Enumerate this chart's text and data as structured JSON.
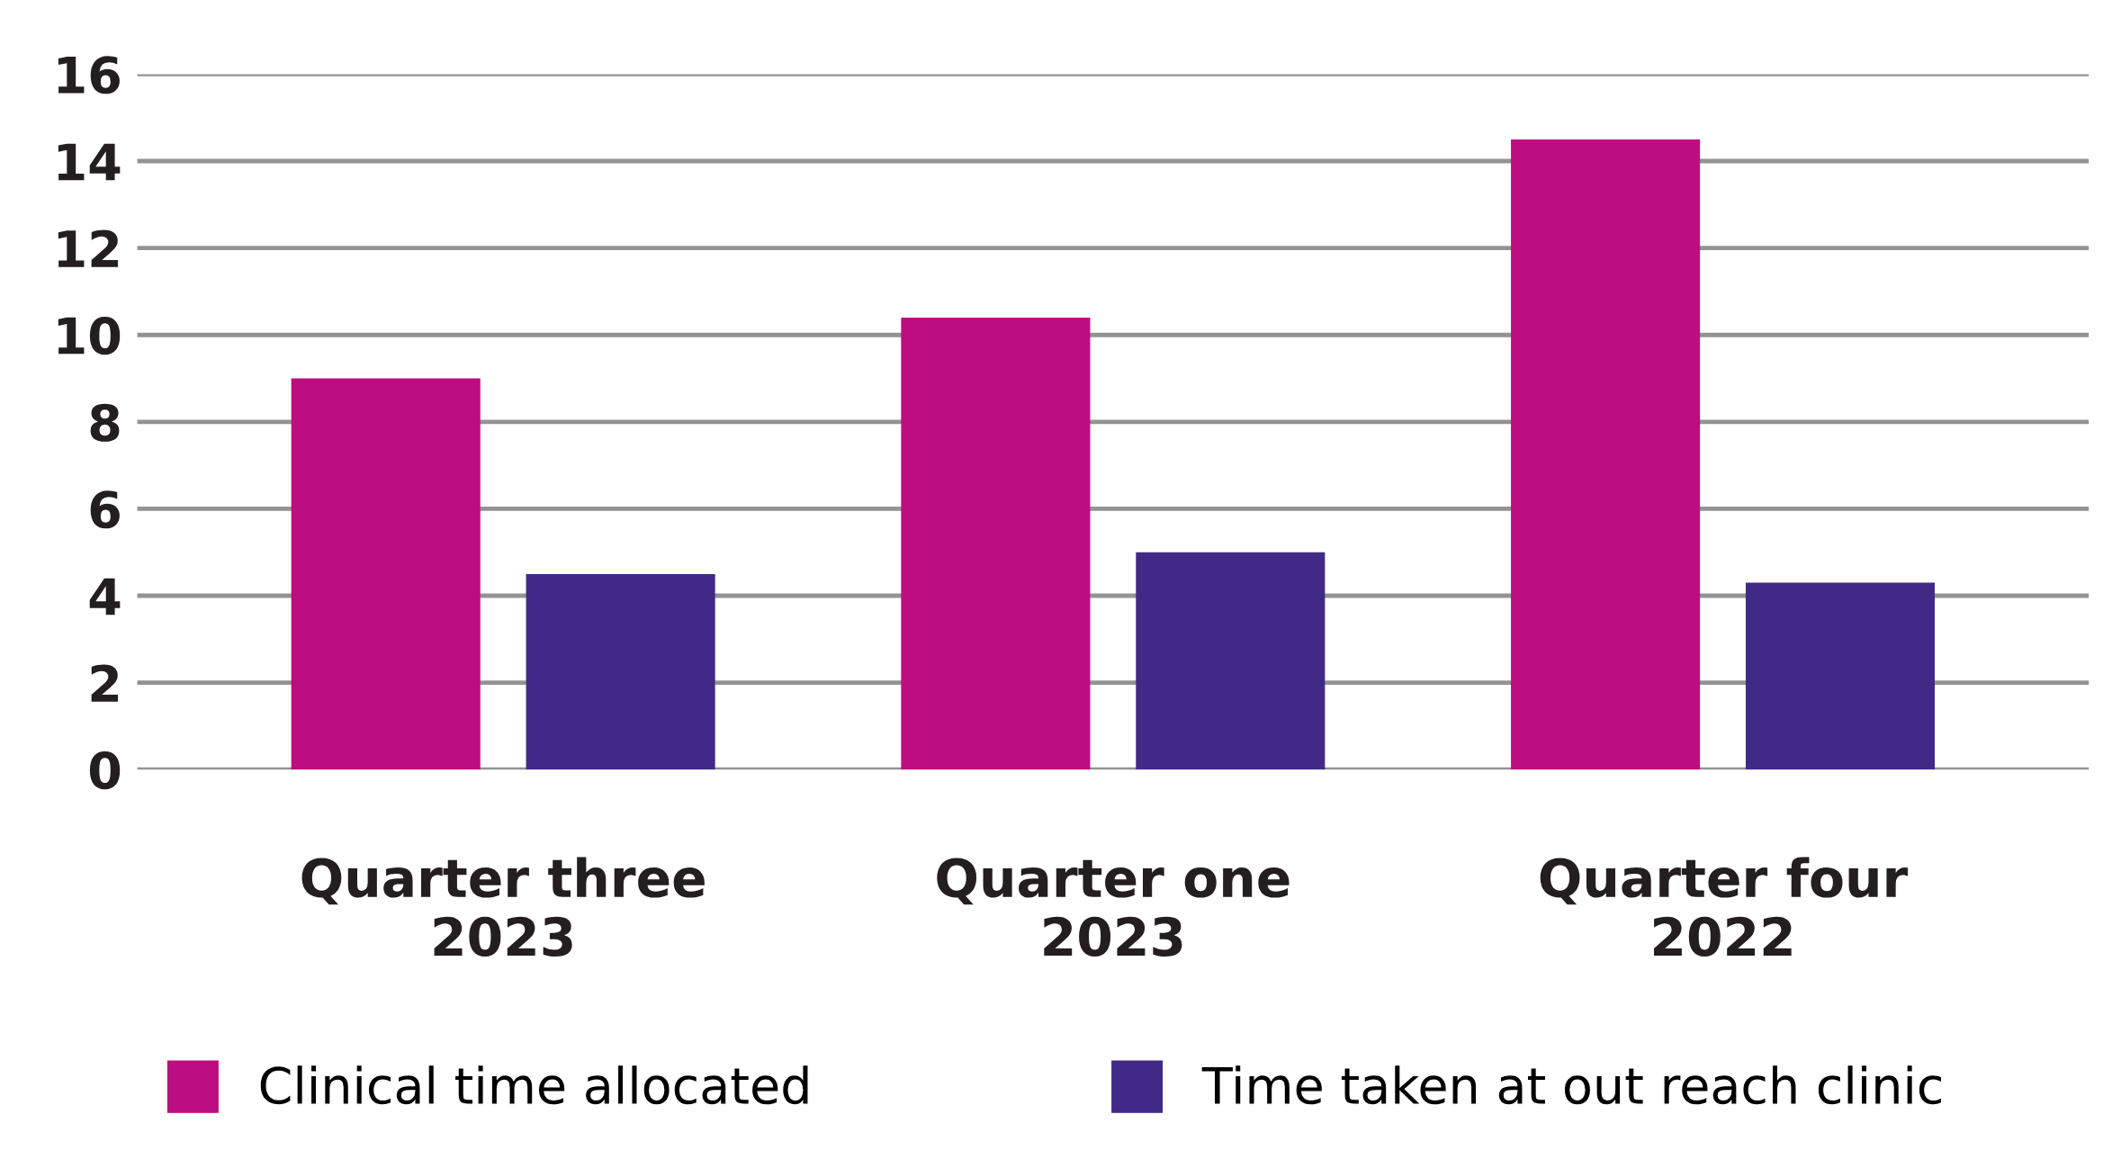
{
  "chart_data": {
    "type": "bar",
    "categories": [
      "Quarter three\n2023",
      "Quarter one\n2023",
      "Quarter four\n2022"
    ],
    "series": [
      {
        "name": "Clinical time allocated",
        "color": "#bc0e80",
        "values": [
          9,
          10.4,
          14.5
        ]
      },
      {
        "name": "Time taken at out reach clinic",
        "color": "#412a87",
        "values": [
          4.5,
          5,
          4.3
        ]
      }
    ],
    "ylim": [
      0,
      16
    ],
    "yticks": [
      0,
      2,
      4,
      6,
      8,
      10,
      12,
      14,
      16
    ],
    "grid": "y",
    "legend": "bottom"
  }
}
